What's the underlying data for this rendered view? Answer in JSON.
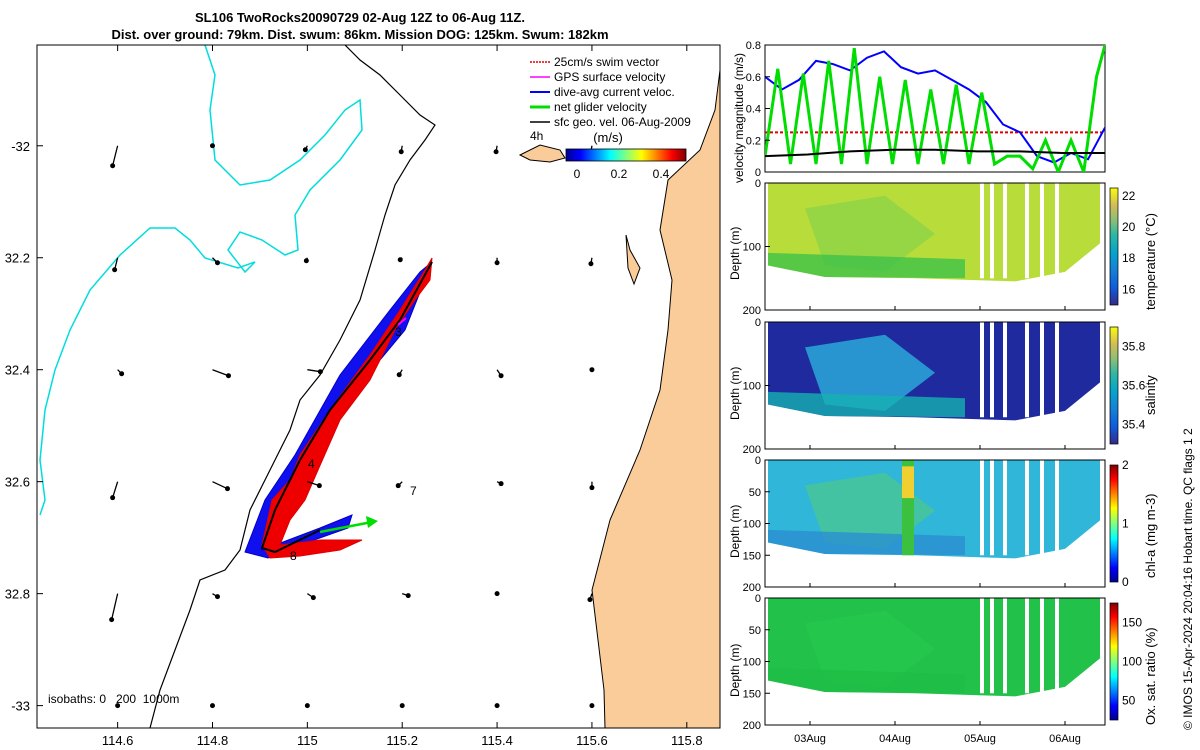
{
  "header": {
    "title_line1": "SL106 TwoRocks20090729 02-Aug 12Z to 06-Aug 11Z.",
    "title_line2": "Dist. over ground: 79km. Dist. swum: 86km. Mission DOG: 125km. Swum: 182km"
  },
  "map": {
    "legend": [
      {
        "label": "25cm/s swim vector",
        "color": "#e00000"
      },
      {
        "label": "GPS surface velocity",
        "color": "#ff00ff"
      },
      {
        "label": "dive-avg current veloc.",
        "color": "#0000ff"
      },
      {
        "label": "net glider velocity",
        "color": "#00dd00"
      },
      {
        "label": "sfc geo. vel. 06-Aug-2009",
        "color": "#000000"
      }
    ],
    "colorbar_title": "(m/s)",
    "colorbar_ticks": [
      "0",
      "0.2",
      "0.4"
    ],
    "isobath_text": "isobaths: 0   200  1000m",
    "stray_label": "4h",
    "track_labels": [
      "3",
      "4",
      "7",
      "8"
    ],
    "colors": {
      "land": "#f9cc99",
      "isobath_200": "#000000",
      "isobath_1000": "#00dddd",
      "track": "#000000"
    }
  },
  "right_panels": {
    "x_ticks": [
      "03Aug",
      "04Aug",
      "05Aug",
      "06Aug"
    ],
    "footer_text": "© IMOS 15-Apr-2024 20:04:16 Hobart time. QC flags 1  2",
    "velocity": {
      "ylabel": "velocity magnitude (m/s)",
      "yticks": [
        "0",
        "0.2",
        "0.4",
        "0.6",
        "0.8"
      ]
    },
    "temperature": {
      "ylabel": "Depth (m)",
      "cblabel": "temperature (°C)",
      "yticks": [
        "0",
        "100",
        "200"
      ],
      "cbticks": [
        "16",
        "18",
        "20",
        "22"
      ]
    },
    "salinity": {
      "ylabel": "Depth (m)",
      "cblabel": "salinity",
      "yticks": [
        "0",
        "100",
        "200"
      ],
      "cbticks": [
        "35.4",
        "35.6",
        "35.8"
      ]
    },
    "chla": {
      "ylabel": "Depth (m)",
      "cblabel": "chl-a (mg m-3)",
      "yticks": [
        "0",
        "50",
        "100",
        "150",
        "200"
      ],
      "cbticks": [
        "0",
        "1",
        "2"
      ]
    },
    "oxygen": {
      "ylabel": "Depth (m)",
      "cblabel": "Ox. sat. ratio (%)",
      "yticks": [
        "0",
        "50",
        "100",
        "150",
        "200"
      ],
      "cbticks": [
        "50",
        "100",
        "150"
      ]
    }
  },
  "chart_data": [
    {
      "type": "scatter",
      "title": "SL106 TwoRocks20090729 02-Aug 12Z to 06-Aug 11Z.",
      "xticks": [
        "114.6",
        "114.8",
        "115",
        "115.2",
        "115.4",
        "115.6",
        "115.8"
      ],
      "yticks": [
        "-32",
        "32.2",
        "32.4",
        "32.6",
        "32.8",
        "-33"
      ],
      "xlim": [
        114.43,
        115.87
      ],
      "ylim": [
        -33.04,
        -31.82
      ],
      "series": [
        {
          "name": "glider track",
          "x": [
            115.26,
            115.2,
            115.13,
            115.05,
            114.97,
            114.92,
            114.94,
            115.03,
            115.08
          ],
          "y": [
            -32.2,
            -32.29,
            -32.4,
            -32.52,
            -32.62,
            -32.72,
            -32.74,
            -32.7,
            -32.68
          ]
        }
      ]
    },
    {
      "type": "line",
      "ylabel": "velocity magnitude (m/s)",
      "ylim": [
        0,
        0.8
      ],
      "x_unit": "days from 02Aug 12Z",
      "series": [
        {
          "name": "25cm/s swim vector",
          "color": "#e00000",
          "x": [
            0,
            4
          ],
          "values": [
            0.25,
            0.25
          ]
        },
        {
          "name": "dive-avg current veloc.",
          "color": "#0000ff",
          "x": [
            0,
            0.2,
            0.4,
            0.6,
            0.8,
            1.0,
            1.2,
            1.4,
            1.6,
            1.8,
            2.0,
            2.2,
            2.4,
            2.6,
            2.8,
            3.0,
            3.2,
            3.4,
            3.6,
            3.8,
            4.0
          ],
          "values": [
            0.6,
            0.52,
            0.58,
            0.7,
            0.68,
            0.64,
            0.72,
            0.76,
            0.66,
            0.62,
            0.64,
            0.58,
            0.52,
            0.44,
            0.3,
            0.25,
            0.1,
            0.06,
            0.12,
            0.08,
            0.28
          ]
        },
        {
          "name": "net glider velocity",
          "color": "#00dd00",
          "x": [
            0,
            0.15,
            0.3,
            0.45,
            0.6,
            0.75,
            0.9,
            1.05,
            1.2,
            1.35,
            1.5,
            1.65,
            1.8,
            1.95,
            2.1,
            2.25,
            2.4,
            2.55,
            2.7,
            2.85,
            3.0,
            3.15,
            3.3,
            3.45,
            3.6,
            3.75,
            3.9,
            4.0
          ],
          "values": [
            0.1,
            0.65,
            0.05,
            0.62,
            0.05,
            0.7,
            0.05,
            0.78,
            0.05,
            0.6,
            0.05,
            0.58,
            0.05,
            0.52,
            0.05,
            0.55,
            0.05,
            0.5,
            0.05,
            0.1,
            0.1,
            0.02,
            0.2,
            0.0,
            0.2,
            0.0,
            0.6,
            0.8
          ]
        },
        {
          "name": "sfc geo. vel. 06-Aug-2009",
          "color": "#000000",
          "x": [
            0,
            0.5,
            1.0,
            1.5,
            2.0,
            2.5,
            3.0,
            3.5,
            4.0
          ],
          "values": [
            0.1,
            0.11,
            0.13,
            0.14,
            0.14,
            0.13,
            0.13,
            0.12,
            0.12
          ]
        }
      ]
    },
    {
      "type": "heatmap",
      "title": "temperature",
      "ylabel": "Depth (m)",
      "ylim": [
        200,
        0
      ],
      "colorbar_range": [
        15,
        22.5
      ],
      "typical_value": 20.5
    },
    {
      "type": "heatmap",
      "title": "salinity",
      "ylabel": "Depth (m)",
      "ylim": [
        200,
        0
      ],
      "colorbar_range": [
        35.3,
        35.9
      ],
      "typical_value": 35.35
    },
    {
      "type": "heatmap",
      "title": "chl-a",
      "ylabel": "Depth (m)",
      "ylim": [
        200,
        0
      ],
      "colorbar_range": [
        0,
        2
      ],
      "typical_value": 0.9
    },
    {
      "type": "heatmap",
      "title": "oxygen saturation",
      "ylabel": "Depth (m)",
      "ylim": [
        200,
        0
      ],
      "colorbar_range": [
        25,
        175
      ],
      "typical_value": 120
    }
  ]
}
